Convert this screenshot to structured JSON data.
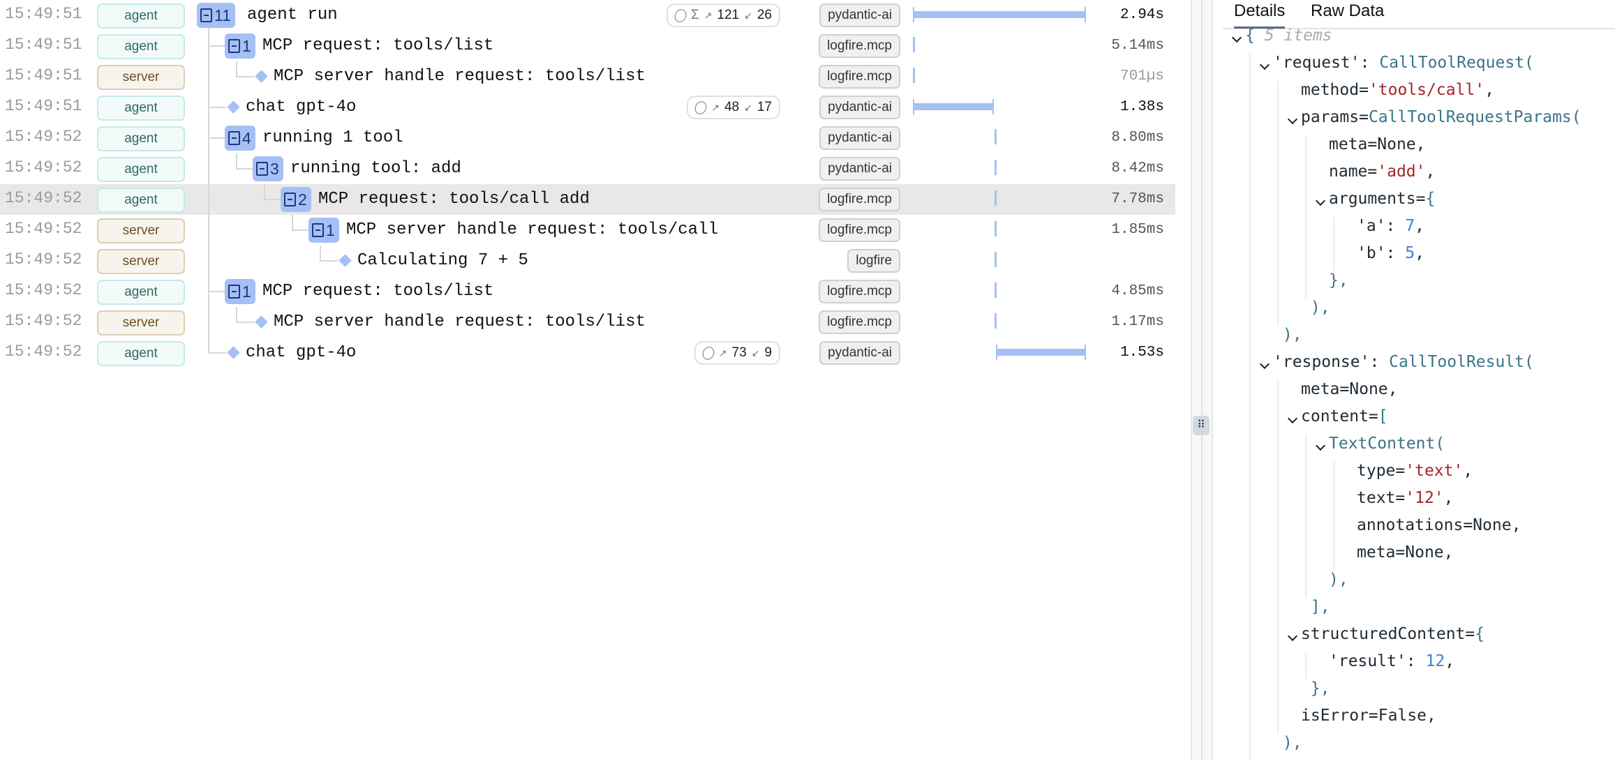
{
  "colors": {
    "accent": "#a6c0f5",
    "agent": "#2f6a5d",
    "server": "#6a5220",
    "string": "#a3262a",
    "number": "#3f7fd4",
    "class": "#3a7489"
  },
  "timeline": {
    "total_s": 2.94
  },
  "rows": [
    {
      "time": "15:49:51",
      "service": "agent",
      "depth": 0,
      "count": "11",
      "name": "agent run",
      "tokens": {
        "sigma": true,
        "in": "121",
        "out": "26"
      },
      "tag": "pydantic-ai",
      "start_s": 0,
      "span_s": 2.94,
      "duration": "2.94s",
      "dur_kind": "s"
    },
    {
      "time": "15:49:51",
      "service": "agent",
      "depth": 1,
      "count": "1",
      "name": "MCP request: tools/list",
      "tag": "logfire.mcp",
      "start_s": 0,
      "span_s": 0.00514,
      "duration": "5.14ms",
      "dur_kind": "ms"
    },
    {
      "time": "15:49:51",
      "service": "server",
      "depth": 2,
      "count": null,
      "name": "MCP server handle request: tools/list",
      "tag": "logfire.mcp",
      "start_s": 0,
      "span_s": 0.000701,
      "duration": "701µs",
      "dur_kind": "us"
    },
    {
      "time": "15:49:51",
      "service": "agent",
      "depth": 1,
      "count": null,
      "name": "chat gpt-4o",
      "tokens": {
        "sigma": false,
        "in": "48",
        "out": "17"
      },
      "tag": "pydantic-ai",
      "start_s": 0,
      "span_s": 1.38,
      "duration": "1.38s",
      "dur_kind": "s"
    },
    {
      "time": "15:49:52",
      "service": "agent",
      "depth": 1,
      "count": "4",
      "name": "running 1 tool",
      "tag": "pydantic-ai",
      "start_s": 1.39,
      "span_s": 0.0088,
      "duration": "8.80ms",
      "dur_kind": "ms"
    },
    {
      "time": "15:49:52",
      "service": "agent",
      "depth": 2,
      "count": "3",
      "name": "running tool: add",
      "tag": "pydantic-ai",
      "start_s": 1.39,
      "span_s": 0.00842,
      "duration": "8.42ms",
      "dur_kind": "ms"
    },
    {
      "time": "15:49:52",
      "service": "agent",
      "depth": 3,
      "count": "2",
      "name": "MCP request: tools/call add",
      "tag": "logfire.mcp",
      "start_s": 1.39,
      "span_s": 0.00778,
      "duration": "7.78ms",
      "dur_kind": "ms",
      "selected": true
    },
    {
      "time": "15:49:52",
      "service": "server",
      "depth": 4,
      "count": "1",
      "name": "MCP server handle request: tools/call",
      "tag": "logfire.mcp",
      "start_s": 1.39,
      "span_s": 0.00185,
      "duration": "1.85ms",
      "dur_kind": "ms"
    },
    {
      "time": "15:49:52",
      "service": "server",
      "depth": 5,
      "count": null,
      "name": "Calculating 7 + 5",
      "tag": "logfire",
      "start_s": 1.39,
      "span_s": 0,
      "duration": "",
      "dur_kind": "ms"
    },
    {
      "time": "15:49:52",
      "service": "agent",
      "depth": 1,
      "count": "1",
      "name": "MCP request: tools/list",
      "tag": "logfire.mcp",
      "start_s": 1.39,
      "span_s": 0.00485,
      "duration": "4.85ms",
      "dur_kind": "ms"
    },
    {
      "time": "15:49:52",
      "service": "server",
      "depth": 2,
      "count": null,
      "name": "MCP server handle request: tools/list",
      "tag": "logfire.mcp",
      "start_s": 1.39,
      "span_s": 0.00117,
      "duration": "1.17ms",
      "dur_kind": "ms"
    },
    {
      "time": "15:49:52",
      "service": "agent",
      "depth": 1,
      "count": null,
      "name": "chat gpt-4o",
      "tokens": {
        "sigma": false,
        "in": "73",
        "out": "9"
      },
      "tag": "pydantic-ai",
      "start_s": 1.41,
      "span_s": 1.53,
      "duration": "1.53s",
      "dur_kind": "s"
    }
  ],
  "panel": {
    "tabs": [
      {
        "label": "Details",
        "active": true
      },
      {
        "label": "Raw Data",
        "active": false
      }
    ],
    "lines": [
      {
        "i": 0,
        "c": true,
        "s": [
          [
            "p",
            "{ "
          ],
          [
            "m",
            "5 items"
          ]
        ]
      },
      {
        "i": 1,
        "c": true,
        "s": [
          [
            "k",
            "'request': "
          ],
          [
            "c",
            "CallToolRequest("
          ]
        ]
      },
      {
        "i": 2,
        "c": false,
        "s": [
          [
            "k",
            "method="
          ],
          [
            "s",
            "'tools/call'"
          ],
          [
            "k",
            ","
          ]
        ]
      },
      {
        "i": 2,
        "c": true,
        "s": [
          [
            "k",
            "params="
          ],
          [
            "c",
            "CallToolRequestParams("
          ]
        ]
      },
      {
        "i": 3,
        "c": false,
        "s": [
          [
            "k",
            "meta="
          ],
          [
            "v",
            "None"
          ],
          [
            "k",
            ","
          ]
        ]
      },
      {
        "i": 3,
        "c": false,
        "s": [
          [
            "k",
            "name="
          ],
          [
            "s",
            "'add'"
          ],
          [
            "k",
            ","
          ]
        ]
      },
      {
        "i": 3,
        "c": true,
        "s": [
          [
            "k",
            "arguments="
          ],
          [
            "p",
            "{"
          ]
        ]
      },
      {
        "i": 4,
        "c": false,
        "s": [
          [
            "k",
            "'a': "
          ],
          [
            "n",
            "7"
          ],
          [
            "k",
            ","
          ]
        ]
      },
      {
        "i": 4,
        "c": false,
        "s": [
          [
            "k",
            "'b': "
          ],
          [
            "n",
            "5"
          ],
          [
            "k",
            ","
          ]
        ]
      },
      {
        "i": 3,
        "c": false,
        "s": [
          [
            "p",
            "},"
          ]
        ]
      },
      {
        "i": 2,
        "c": false,
        "s": [
          [
            "p",
            " ),"
          ]
        ]
      },
      {
        "i": 1,
        "c": false,
        "s": [
          [
            "p",
            " ),"
          ]
        ]
      },
      {
        "i": 1,
        "c": true,
        "s": [
          [
            "k",
            "'response': "
          ],
          [
            "c",
            "CallToolResult("
          ]
        ]
      },
      {
        "i": 2,
        "c": false,
        "s": [
          [
            "k",
            "meta="
          ],
          [
            "v",
            "None"
          ],
          [
            "k",
            ","
          ]
        ]
      },
      {
        "i": 2,
        "c": true,
        "s": [
          [
            "k",
            "content="
          ],
          [
            "p",
            "["
          ]
        ]
      },
      {
        "i": 3,
        "c": true,
        "s": [
          [
            "c",
            "TextContent("
          ]
        ]
      },
      {
        "i": 4,
        "c": false,
        "s": [
          [
            "k",
            "type="
          ],
          [
            "s",
            "'text'"
          ],
          [
            "k",
            ","
          ]
        ]
      },
      {
        "i": 4,
        "c": false,
        "s": [
          [
            "k",
            "text="
          ],
          [
            "s",
            "'12'"
          ],
          [
            "k",
            ","
          ]
        ]
      },
      {
        "i": 4,
        "c": false,
        "s": [
          [
            "k",
            "annotations="
          ],
          [
            "v",
            "None"
          ],
          [
            "k",
            ","
          ]
        ]
      },
      {
        "i": 4,
        "c": false,
        "s": [
          [
            "k",
            "meta="
          ],
          [
            "v",
            "None"
          ],
          [
            "k",
            ","
          ]
        ]
      },
      {
        "i": 3,
        "c": false,
        "s": [
          [
            "p",
            "),"
          ]
        ]
      },
      {
        "i": 2,
        "c": false,
        "s": [
          [
            "p",
            " ],"
          ]
        ]
      },
      {
        "i": 2,
        "c": true,
        "s": [
          [
            "k",
            "structuredContent="
          ],
          [
            "p",
            "{"
          ]
        ]
      },
      {
        "i": 3,
        "c": false,
        "s": [
          [
            "k",
            "'result': "
          ],
          [
            "n",
            "12"
          ],
          [
            "k",
            ","
          ]
        ]
      },
      {
        "i": 2,
        "c": false,
        "s": [
          [
            "p",
            " },"
          ]
        ]
      },
      {
        "i": 2,
        "c": false,
        "s": [
          [
            "k",
            "isError="
          ],
          [
            "v",
            "False"
          ],
          [
            "k",
            ","
          ]
        ]
      },
      {
        "i": 1,
        "c": false,
        "s": [
          [
            "p",
            " ),"
          ]
        ]
      }
    ]
  },
  "divider": {
    "handle_icon": "drag-handle-icon",
    "glyph": "⠿"
  }
}
